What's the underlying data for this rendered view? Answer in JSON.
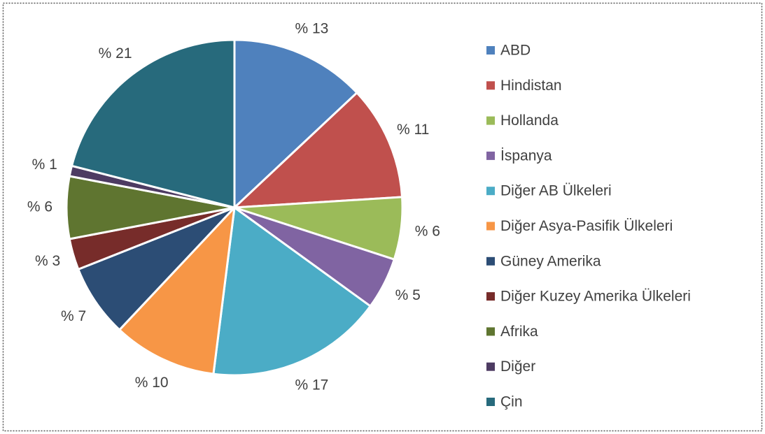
{
  "chart_data": {
    "type": "pie",
    "categories": [
      "ABD",
      "Hindistan",
      "Hollanda",
      "İspanya",
      "Diğer AB Ülkeleri",
      "Diğer Asya-Pasifik Ülkeleri",
      "Güney Amerika",
      "Diğer Kuzey Amerika Ülkeleri",
      "Afrika",
      "Diğer",
      "Çin"
    ],
    "values": [
      13,
      11,
      6,
      5,
      17,
      10,
      7,
      3,
      6,
      1,
      21
    ],
    "value_labels": [
      "% 13",
      "% 11",
      "% 6",
      "% 5",
      "% 17",
      "% 10",
      "% 7",
      "% 3",
      "% 6",
      "% 1",
      "% 21"
    ],
    "colors": [
      "#4f81bd",
      "#c0504d",
      "#9bbb59",
      "#8064a2",
      "#4bacc6",
      "#f79646",
      "#2c4d75",
      "#772c2a",
      "#5f7530",
      "#4d3b62",
      "#276a7c"
    ],
    "legend": "right"
  }
}
